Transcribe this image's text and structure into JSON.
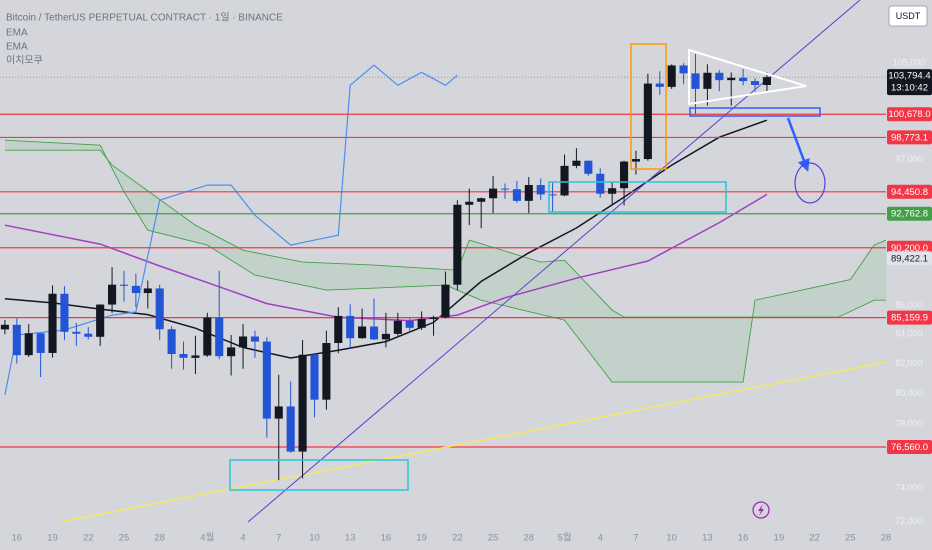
{
  "chart_data": {
    "type": "candlestick",
    "title": "Bitcoin / TetherUS PERPETUAL CONTRACT · 1일 · BINANCE",
    "currency": "USDT",
    "log_scale": true,
    "grid": false,
    "up_color": "#131722",
    "down_color": "#2454d6",
    "xlim": [
      "03-14",
      "05-28"
    ],
    "ylim": [
      71800,
      110600
    ],
    "yticks": [
      {
        "value": 105000,
        "label": "105,000"
      },
      {
        "value": 97000,
        "label": "97,000"
      },
      {
        "value": 86000,
        "label": "86,000"
      },
      {
        "value": 84000,
        "label": "84,000"
      },
      {
        "value": 82000,
        "label": "82,000"
      },
      {
        "value": 80000,
        "label": "80,000"
      },
      {
        "value": 78000,
        "label": "78,000"
      },
      {
        "value": 74000,
        "label": "74,000"
      },
      {
        "value": 72000,
        "label": "72,000"
      }
    ],
    "xticks": [
      {
        "value": "03-16",
        "label": "16"
      },
      {
        "value": "03-19",
        "label": "19"
      },
      {
        "value": "03-22",
        "label": "22"
      },
      {
        "value": "03-25",
        "label": "25"
      },
      {
        "value": "03-28",
        "label": "28"
      },
      {
        "value": "04-01",
        "label": "4월"
      },
      {
        "value": "04-04",
        "label": "4"
      },
      {
        "value": "04-07",
        "label": "7"
      },
      {
        "value": "04-10",
        "label": "10"
      },
      {
        "value": "04-13",
        "label": "13"
      },
      {
        "value": "04-16",
        "label": "16"
      },
      {
        "value": "04-19",
        "label": "19"
      },
      {
        "value": "04-22",
        "label": "22"
      },
      {
        "value": "04-25",
        "label": "25"
      },
      {
        "value": "04-28",
        "label": "28"
      },
      {
        "value": "05-01",
        "label": "5월"
      },
      {
        "value": "05-04",
        "label": "4"
      },
      {
        "value": "05-07",
        "label": "7"
      },
      {
        "value": "05-10",
        "label": "10"
      },
      {
        "value": "05-13",
        "label": "13"
      },
      {
        "value": "05-16",
        "label": "16"
      },
      {
        "value": "05-19",
        "label": "19"
      },
      {
        "value": "05-22",
        "label": "22"
      },
      {
        "value": "05-25",
        "label": "25"
      },
      {
        "value": "05-28",
        "label": "28"
      }
    ],
    "x": [
      "03-15",
      "03-16",
      "03-17",
      "03-18",
      "03-19",
      "03-20",
      "03-21",
      "03-22",
      "03-23",
      "03-24",
      "03-25",
      "03-26",
      "03-27",
      "03-28",
      "03-29",
      "03-30",
      "03-31",
      "04-01",
      "04-02",
      "04-03",
      "04-04",
      "04-05",
      "04-06",
      "04-07",
      "04-08",
      "04-09",
      "04-10",
      "04-11",
      "04-12",
      "04-13",
      "04-14",
      "04-15",
      "04-16",
      "04-17",
      "04-18",
      "04-19",
      "04-20",
      "04-21",
      "04-22",
      "04-23",
      "04-24",
      "04-25",
      "04-26",
      "04-27",
      "04-28",
      "04-29",
      "04-30",
      "05-01",
      "05-02",
      "05-03",
      "05-04",
      "05-05",
      "05-06",
      "05-07",
      "05-08",
      "05-09",
      "05-10",
      "05-11",
      "05-12",
      "05-13",
      "05-14",
      "05-15",
      "05-16",
      "05-17",
      "05-18"
    ],
    "open": [
      84340,
      84660,
      82570,
      84070,
      82720,
      86850,
      84170,
      84040,
      83830,
      86080,
      87500,
      87420,
      86900,
      87230,
      84350,
      82650,
      82390,
      82550,
      85160,
      82500,
      83100,
      83850,
      83500,
      78370,
      79160,
      76270,
      82600,
      79600,
      83400,
      85280,
      83730,
      84540,
      83650,
      84030,
      84940,
      84450,
      85060,
      85170,
      87500,
      93450,
      93680,
      93950,
      94700,
      94650,
      93750,
      94980,
      94250,
      94170,
      96490,
      96900,
      95860,
      94300,
      94730,
      96830,
      97030,
      103250,
      102970,
      104800,
      104120,
      102800,
      104170,
      103540,
      103740,
      103460,
      103130
    ],
    "high": [
      85000,
      85100,
      84700,
      84100,
      87450,
      87400,
      84800,
      84500,
      86100,
      88770,
      88500,
      88300,
      87800,
      87500,
      84550,
      83500,
      83900,
      85500,
      88500,
      83950,
      84700,
      84250,
      83800,
      81250,
      80800,
      83600,
      82700,
      84250,
      85900,
      86100,
      85800,
      86500,
      85500,
      85500,
      85100,
      85600,
      85300,
      88450,
      93800,
      94700,
      94000,
      95700,
      95100,
      95300,
      95600,
      95500,
      95200,
      97400,
      97900,
      96900,
      96300,
      95200,
      96900,
      97700,
      104100,
      104300,
      104900,
      105000,
      105800,
      104900,
      104400,
      104200,
      104500,
      103700,
      104200
    ],
    "low": [
      84000,
      82000,
      82450,
      81100,
      82400,
      83600,
      83200,
      83650,
      83200,
      85500,
      86300,
      85900,
      85800,
      83600,
      81650,
      81600,
      81300,
      82450,
      82300,
      81200,
      81650,
      82400,
      77150,
      74500,
      76200,
      74600,
      78450,
      78950,
      82700,
      83030,
      83700,
      83600,
      83100,
      83900,
      84250,
      84300,
      83900,
      85100,
      87100,
      91900,
      91660,
      92800,
      93900,
      93600,
      92800,
      93800,
      92900,
      94100,
      96300,
      95700,
      94000,
      93500,
      93400,
      95800,
      96900,
      102300,
      102800,
      103200,
      100700,
      101400,
      102600,
      101400,
      103100,
      102600,
      102600
    ],
    "close": [
      84660,
      82570,
      84070,
      82720,
      86850,
      84170,
      84040,
      83830,
      86080,
      87500,
      87420,
      86900,
      87230,
      84350,
      82650,
      82390,
      82550,
      85160,
      82500,
      83100,
      83850,
      83500,
      78370,
      79160,
      76270,
      82600,
      79600,
      83400,
      85280,
      83730,
      84540,
      83650,
      84030,
      84940,
      84450,
      85060,
      85170,
      87500,
      93450,
      93680,
      93950,
      94700,
      94650,
      93750,
      94980,
      94250,
      94170,
      96490,
      96900,
      95860,
      94300,
      94730,
      96830,
      97030,
      103250,
      102970,
      104800,
      104120,
      102800,
      104170,
      103540,
      103740,
      103460,
      103130,
      103794.4
    ],
    "indicators": [
      {
        "name": "EMA",
        "color": "#131722",
        "x": [
          "03-15",
          "03-19",
          "03-23",
          "03-27",
          "03-31",
          "04-04",
          "04-08",
          "04-12",
          "04-16",
          "04-20",
          "04-24",
          "04-28",
          "05-02",
          "05-06",
          "05-10",
          "05-14",
          "05-18"
        ],
        "values": [
          86500,
          86200,
          85760,
          85370,
          84420,
          83100,
          82380,
          82900,
          83500,
          84830,
          87740,
          89830,
          91680,
          94040,
          96550,
          98790,
          100180
        ]
      },
      {
        "name": "EMA",
        "color": "#a23fc0",
        "x": [
          "03-15",
          "03-23",
          "03-28",
          "04-01",
          "04-06",
          "04-12",
          "04-18",
          "04-22",
          "04-26",
          "05-02",
          "05-08",
          "05-14",
          "05-18"
        ],
        "values": [
          91890,
          90470,
          88860,
          87650,
          86150,
          85190,
          84950,
          85340,
          86560,
          87970,
          89220,
          92090,
          94250
        ]
      },
      {
        "name": "이치모쿠",
        "cloud_color": "#4caf50",
        "lagging": {
          "color": "#4d8fee",
          "x": [
            "03-15",
            "03-16",
            "03-20",
            "03-24",
            "03-26",
            "03-28",
            "04-01",
            "04-03",
            "04-05",
            "04-08",
            "04-10",
            "04-12",
            "04-13",
            "04-15",
            "04-17",
            "04-19",
            "04-21",
            "04-22"
          ],
          "values": [
            79910,
            83950,
            84300,
            85340,
            85560,
            93800,
            94970,
            94970,
            92650,
            90400,
            90770,
            91140,
            103100,
            104820,
            103100,
            104210,
            103100,
            103960
          ]
        },
        "span_a": {
          "color": "#43a047",
          "x": [
            "03-15",
            "03-23",
            "03-25",
            "03-27",
            "04-01",
            "04-05",
            "04-11",
            "04-21",
            "04-24",
            "05-01",
            "05-05",
            "05-16",
            "05-17",
            "05-25",
            "05-27",
            "05-28"
          ],
          "values": [
            98550,
            98140,
            94450,
            91510,
            90400,
            88190,
            87110,
            87470,
            86390,
            84990,
            80760,
            80760,
            86390,
            87870,
            90400,
            90770
          ]
        },
        "span_b": {
          "color": "#43a047",
          "x": [
            "03-15",
            "03-23",
            "03-24",
            "03-31",
            "04-04",
            "04-09",
            "04-15",
            "04-22",
            "04-23",
            "04-29",
            "05-01",
            "05-05",
            "05-06",
            "05-24",
            "05-27",
            "05-28"
          ],
          "values": [
            97740,
            97740,
            96550,
            91890,
            90020,
            89140,
            88920,
            88550,
            90770,
            89140,
            89280,
            85690,
            85200,
            85200,
            86390,
            86390
          ]
        }
      }
    ],
    "levels": {
      "values": [
        100678.0,
        98773.1,
        94450.8,
        92762.8,
        90200.0,
        85159.9,
        76560.0
      ],
      "value_labels": [
        "100,678.0",
        "98,773.1",
        "94,450.8",
        "92,762.8",
        "90,200.0",
        "85,159.9",
        "76,560.0"
      ],
      "colors": [
        "#f23645",
        "#f23645",
        "#f23645",
        "#43a047",
        "#f23645",
        "#f23645",
        "#f23645"
      ]
    },
    "marker_label": {
      "value": 89422.1,
      "label": "89,422.1"
    },
    "last_price": {
      "value": 103794.4,
      "label": "103,794.4",
      "countdown": "13:10:42"
    }
  }
}
